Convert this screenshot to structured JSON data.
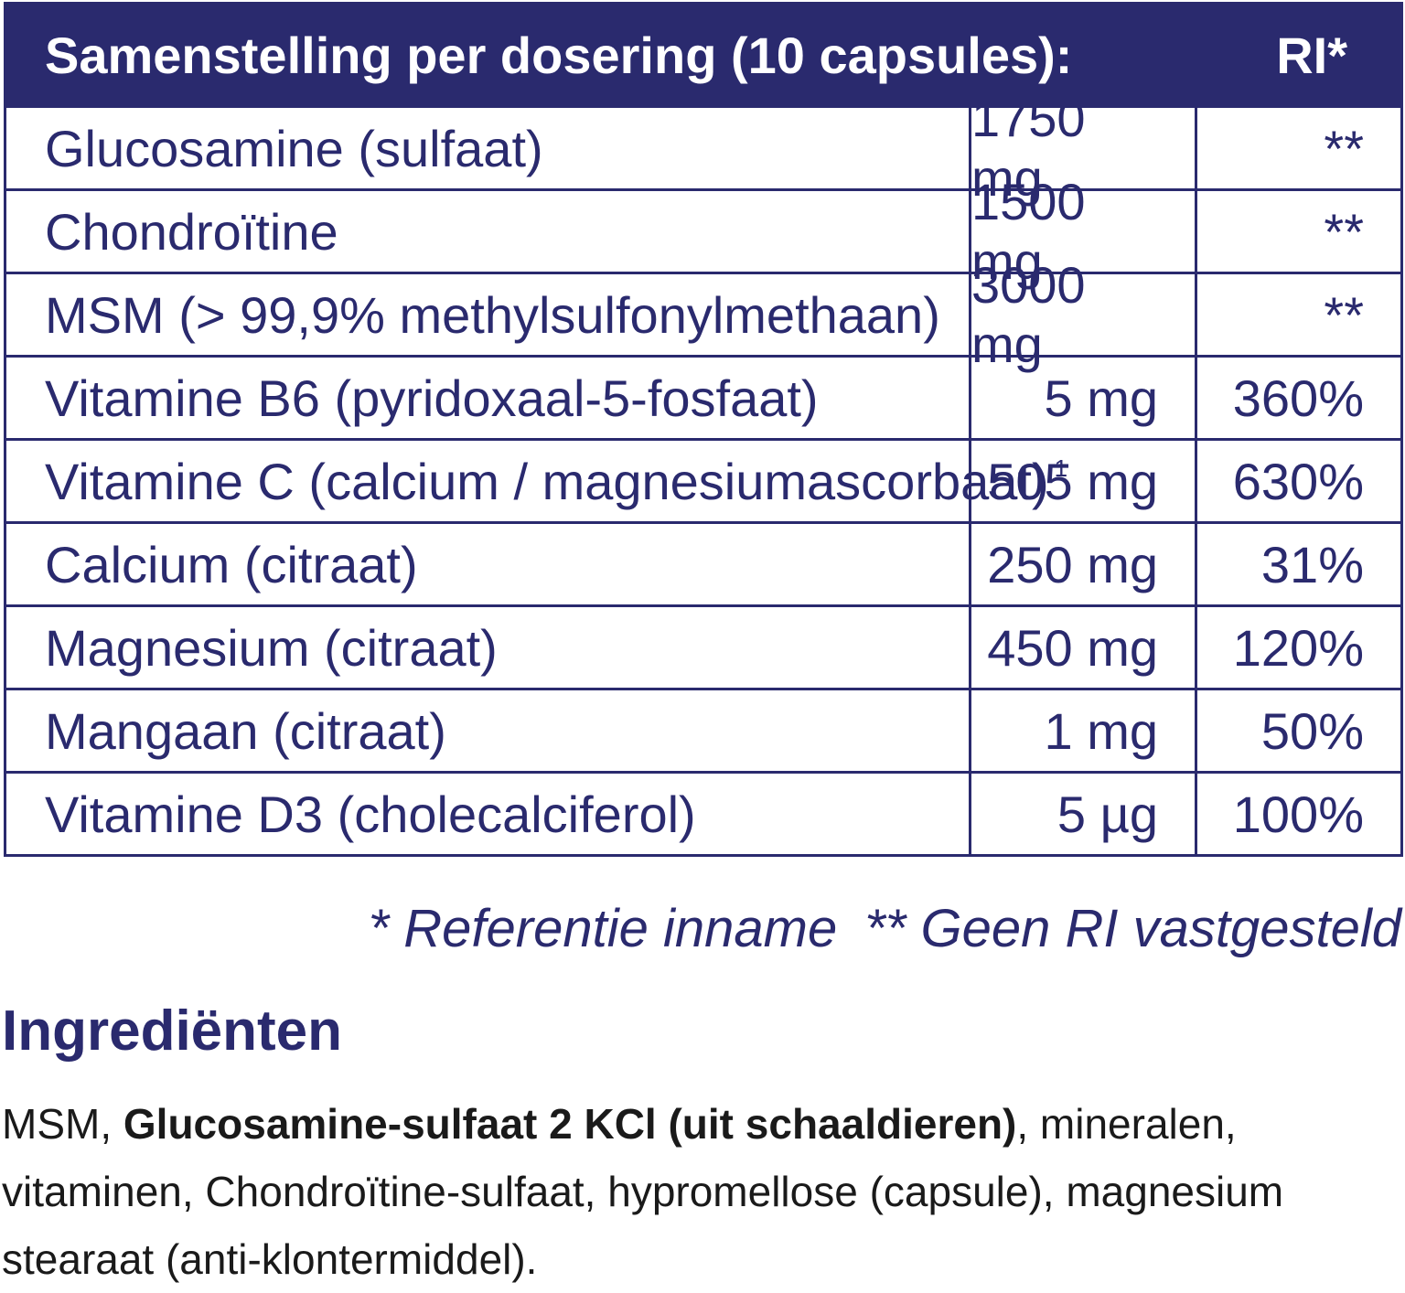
{
  "table": {
    "header": {
      "title": "Samenstelling per dosering (10 capsules):",
      "ri": "RI*"
    },
    "rows": [
      {
        "name": "Glucosamine (sulfaat)",
        "sup": "",
        "amount": "1750 mg",
        "ri": "**"
      },
      {
        "name": "Chondroïtine",
        "sup": "",
        "amount": "1500 mg",
        "ri": "**"
      },
      {
        "name": "MSM (> 99,9% methylsulfonylmethaan)",
        "sup": "",
        "amount": "3000 mg",
        "ri": "**"
      },
      {
        "name": "Vitamine B6 (pyridoxaal-5-fosfaat)",
        "sup": "",
        "amount": "5 mg",
        "ri": "360%"
      },
      {
        "name": "Vitamine C (calcium / magnesiumascorbaat)",
        "sup": "1",
        "amount": "505 mg",
        "ri": "630%"
      },
      {
        "name": "Calcium (citraat)",
        "sup": "",
        "amount": "250 mg",
        "ri": "31%"
      },
      {
        "name": "Magnesium (citraat)",
        "sup": "",
        "amount": "450 mg",
        "ri": "120%"
      },
      {
        "name": "Mangaan (citraat)",
        "sup": "",
        "amount": "1 mg",
        "ri": "50%"
      },
      {
        "name": "Vitamine D3 (cholecalciferol)",
        "sup": "",
        "amount": "5 µg",
        "ri": "100%"
      }
    ]
  },
  "footnote": {
    "ri": "* Referentie inname",
    "no_ri": "** Geen RI vastgesteld"
  },
  "ingredients": {
    "title": "Ingrediënten",
    "prefix": "MSM, ",
    "bold": "Glucosamine-sulfaat 2 KCl (uit schaaldieren)",
    "rest": ", mineralen, vitaminen, Chondroïtine-sulfaat, hypromellose (capsule), magnesium stearaat (anti-klontermiddel)."
  }
}
